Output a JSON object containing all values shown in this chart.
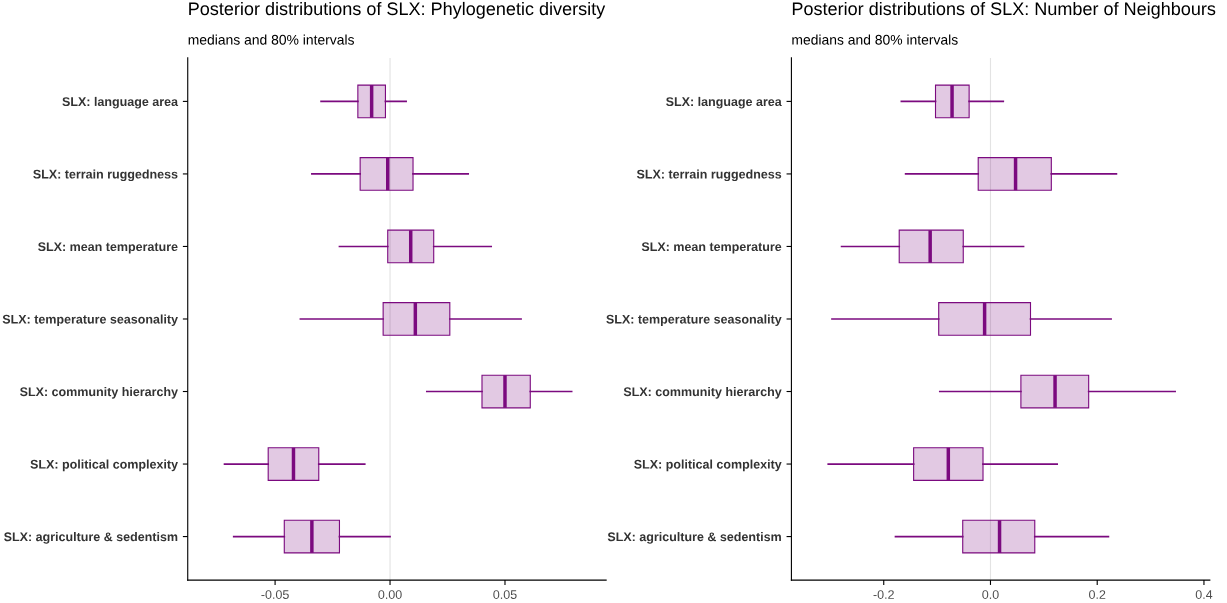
{
  "chart_data": [
    {
      "type": "box",
      "orientation": "horizontal",
      "title": "Posterior distributions of SLX: Phylogenetic diversity",
      "subtitle": "medians and 80% intervals",
      "categories": [
        "SLX: language area",
        "SLX: terrain ruggedness",
        "SLX: mean temperature",
        "SLX: temperature seasonality",
        "SLX: community hierarchy",
        "SLX: political complexity",
        "SLX: agriculture & sedentism"
      ],
      "boxes": [
        {
          "low": -0.03,
          "q1": -0.014,
          "median": -0.008,
          "q3": -0.002,
          "high": 0.007
        },
        {
          "low": -0.034,
          "q1": -0.013,
          "median": -0.001,
          "q3": 0.01,
          "high": 0.034
        },
        {
          "low": -0.022,
          "q1": -0.001,
          "median": 0.009,
          "q3": 0.019,
          "high": 0.044
        },
        {
          "low": -0.039,
          "q1": -0.003,
          "median": 0.011,
          "q3": 0.026,
          "high": 0.057
        },
        {
          "low": 0.016,
          "q1": 0.04,
          "median": 0.05,
          "q3": 0.061,
          "high": 0.079
        },
        {
          "low": -0.072,
          "q1": -0.053,
          "median": -0.042,
          "q3": -0.031,
          "high": -0.011
        },
        {
          "low": -0.068,
          "q1": -0.046,
          "median": -0.034,
          "q3": -0.022,
          "high": 0.0
        }
      ],
      "color": "#7b0a7f",
      "xlim": [
        -0.088,
        0.094
      ],
      "xticks": [
        {
          "value": -0.05,
          "label": "-0.05"
        },
        {
          "value": 0,
          "label": "0.00"
        },
        {
          "value": 0.05,
          "label": "0.05"
        }
      ],
      "ref_lines": [
        {
          "axis": "x",
          "value": 0,
          "color": "#e3e3e3"
        }
      ],
      "grid": false
    },
    {
      "type": "box",
      "orientation": "horizontal",
      "title": "Posterior distributions of SLX: Number of Neighbours",
      "subtitle": "medians and 80% intervals",
      "categories": [
        "SLX: language area",
        "SLX: terrain ruggedness",
        "SLX: mean temperature",
        "SLX: temperature seasonality",
        "SLX: community hierarchy",
        "SLX: political complexity",
        "SLX: agriculture & sedentism"
      ],
      "boxes": [
        {
          "low": -0.167,
          "q1": -0.103,
          "median": -0.072,
          "q3": -0.04,
          "high": 0.024
        },
        {
          "low": -0.159,
          "q1": -0.023,
          "median": 0.047,
          "q3": 0.114,
          "high": 0.236
        },
        {
          "low": -0.279,
          "q1": -0.171,
          "median": -0.113,
          "q3": -0.051,
          "high": 0.062
        },
        {
          "low": -0.297,
          "q1": -0.097,
          "median": -0.011,
          "q3": 0.075,
          "high": 0.226
        },
        {
          "low": -0.095,
          "q1": 0.057,
          "median": 0.121,
          "q3": 0.184,
          "high": 0.346
        },
        {
          "low": -0.304,
          "q1": -0.144,
          "median": -0.079,
          "q3": -0.014,
          "high": 0.125
        },
        {
          "low": -0.178,
          "q1": -0.052,
          "median": 0.017,
          "q3": 0.083,
          "high": 0.221
        }
      ],
      "color": "#7b0a7f",
      "xlim": [
        -0.373,
        0.411
      ],
      "xticks": [
        {
          "value": -0.2,
          "label": "-0.2"
        },
        {
          "value": 0,
          "label": "0.0"
        },
        {
          "value": 0.2,
          "label": "0.2"
        },
        {
          "value": 0.4,
          "label": "0.4"
        }
      ],
      "ref_lines": [
        {
          "axis": "x",
          "value": 0,
          "color": "#e3e3e3"
        }
      ],
      "grid": false
    }
  ]
}
